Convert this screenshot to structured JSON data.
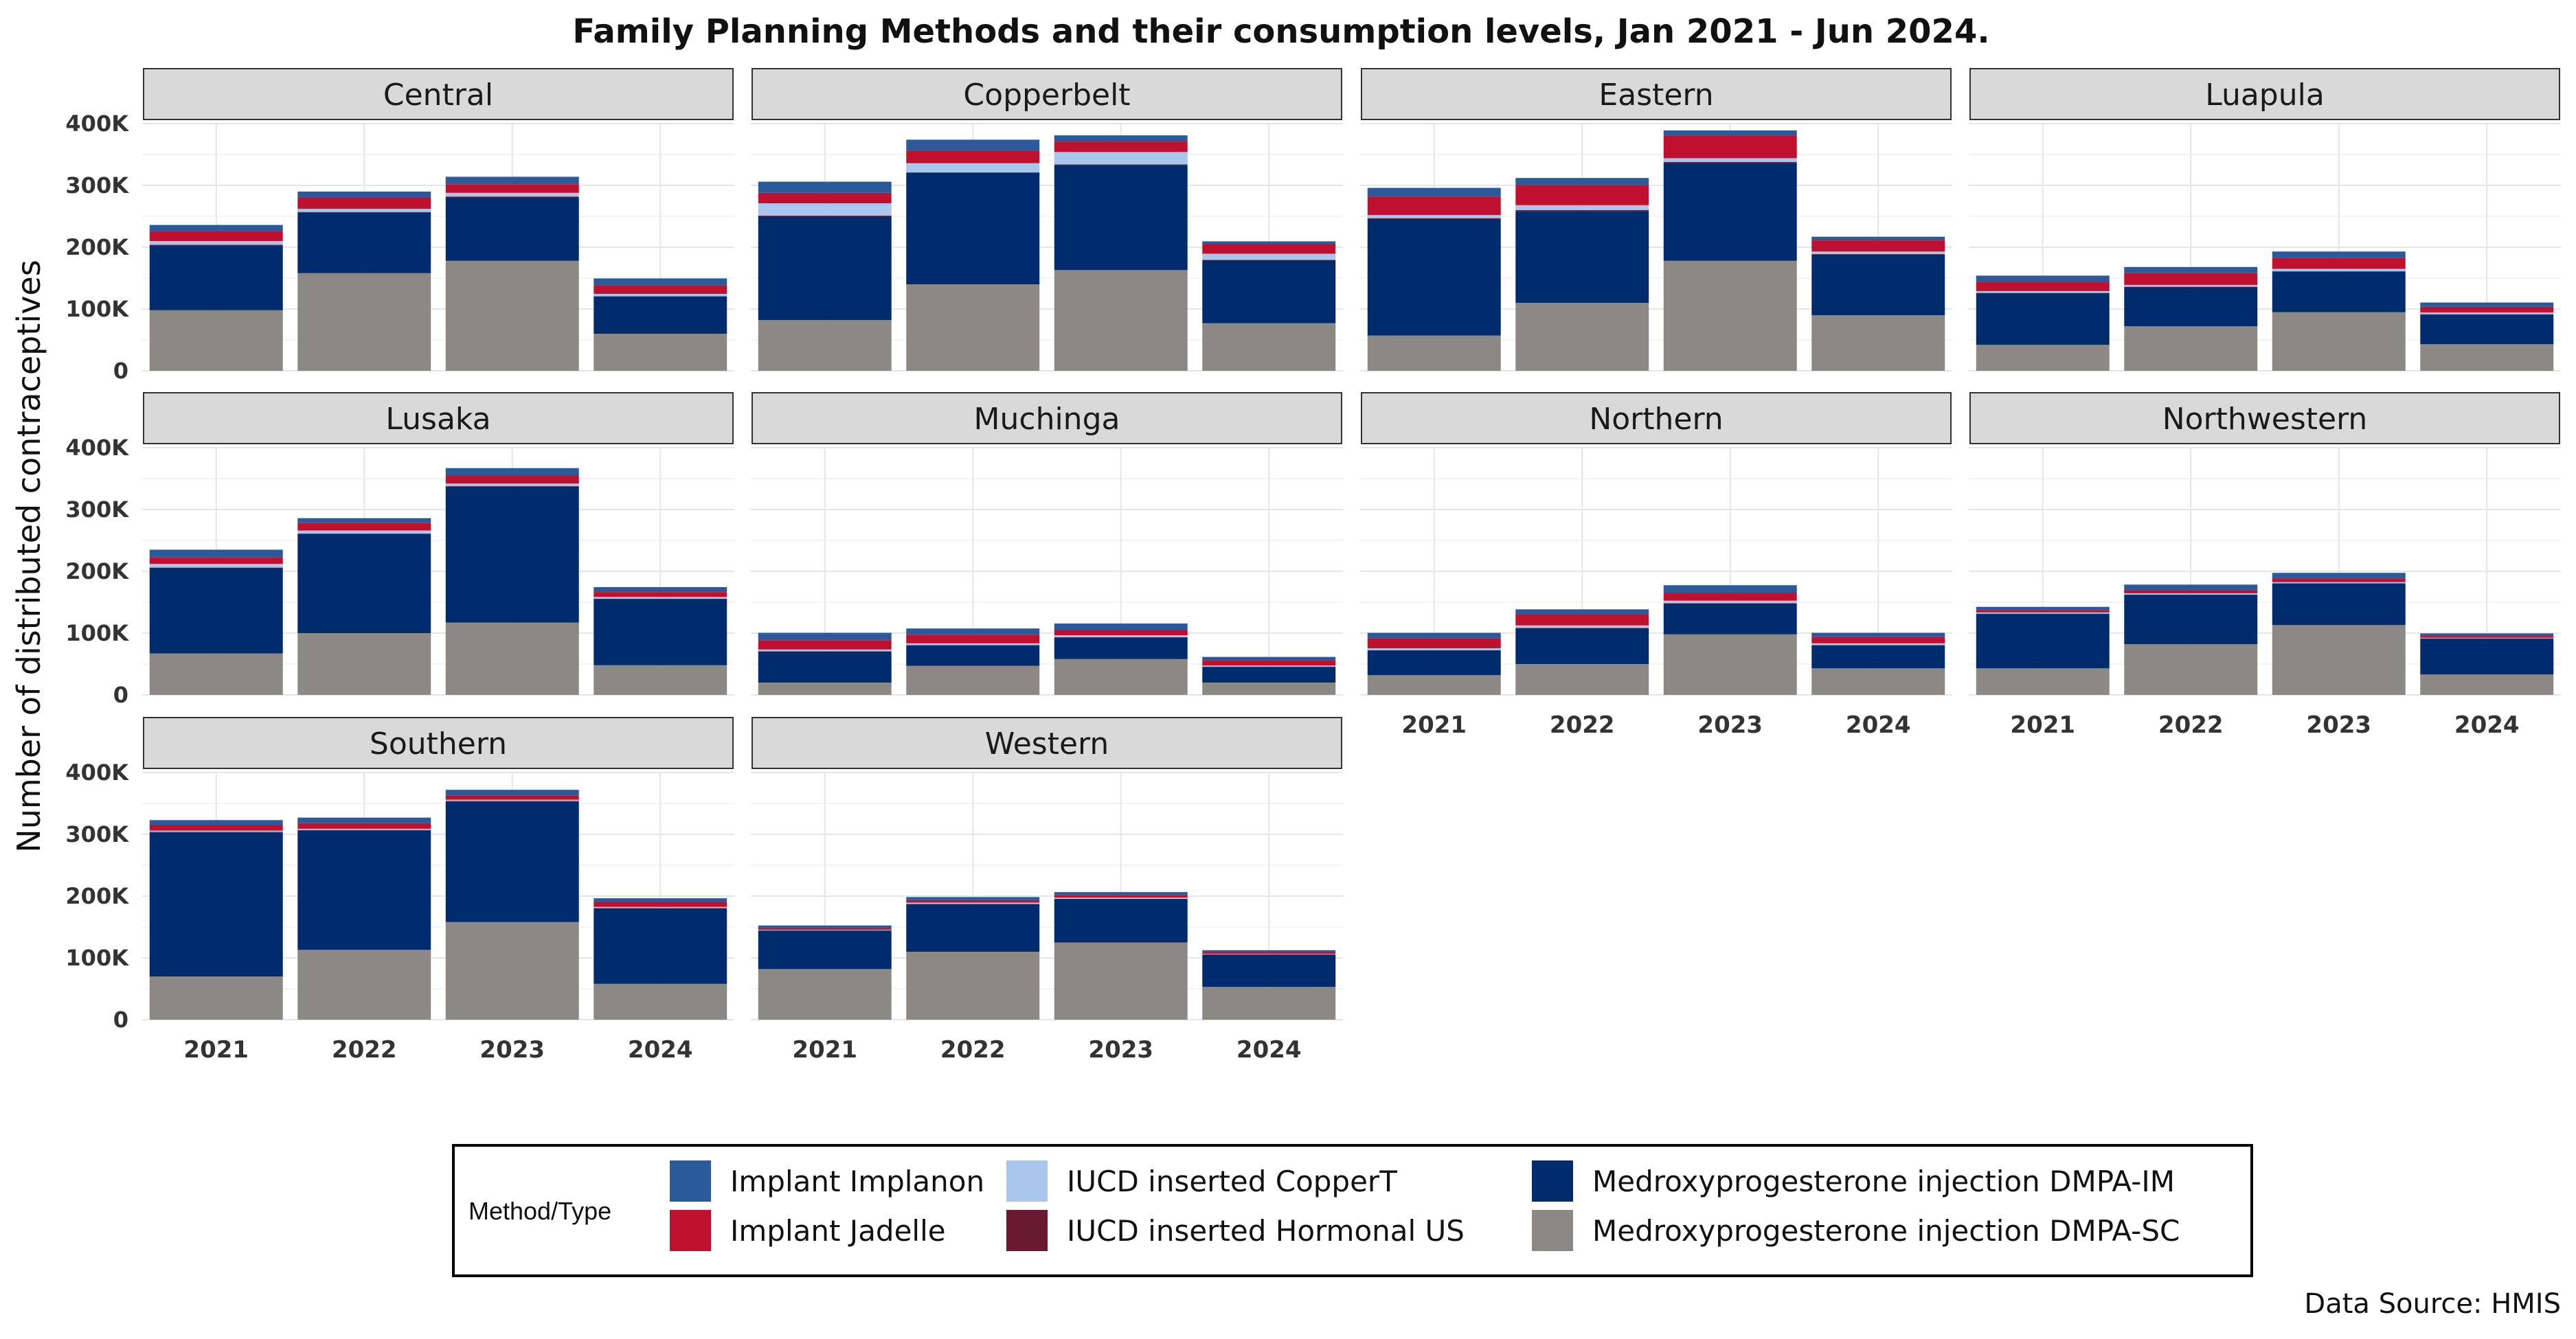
{
  "chart_data": {
    "type": "bar",
    "stacked": true,
    "title": "Family Planning Methods and their consumption levels, Jan 2021 - Jun 2024.",
    "ylabel": "Number of distributed contraceptives",
    "xlabel": "",
    "ylim": [
      0,
      400000
    ],
    "yticks": [
      0,
      100000,
      200000,
      300000,
      400000
    ],
    "ytick_labels": [
      "0",
      "100K",
      "200K",
      "300K",
      "400K"
    ],
    "categories": [
      "2021",
      "2022",
      "2023",
      "2024"
    ],
    "grid": true,
    "legend": {
      "title": "Method/Type",
      "placement": "bottom",
      "items": [
        {
          "name": "Implant Implanon",
          "color": "#2a5a9a"
        },
        {
          "name": "Implant Jadelle",
          "color": "#c0102f"
        },
        {
          "name": "IUCD inserted CopperT",
          "color": "#a9c6ec"
        },
        {
          "name": "IUCD inserted Hormonal US",
          "color": "#6a1a30"
        },
        {
          "name": "Medroxyprogesterone injection DMPA-IM",
          "color": "#002c6e"
        },
        {
          "name": "Medroxyprogesterone injection DMPA-SC",
          "color": "#8c8883"
        }
      ]
    },
    "stack_order": [
      "Medroxyprogesterone injection DMPA-SC",
      "Medroxyprogesterone injection DMPA-IM",
      "IUCD inserted Hormonal US",
      "IUCD inserted CopperT",
      "Implant Jadelle",
      "Implant Implanon"
    ],
    "panels": [
      {
        "name": "Central",
        "series": [
          {
            "name": "Medroxyprogesterone injection DMPA-SC",
            "values": [
              98000,
              158000,
              178000,
              60000
            ]
          },
          {
            "name": "Medroxyprogesterone injection DMPA-IM",
            "values": [
              105000,
              98000,
              103000,
              60000
            ]
          },
          {
            "name": "IUCD inserted Hormonal US",
            "values": [
              1000,
              1000,
              1000,
              500
            ]
          },
          {
            "name": "IUCD inserted CopperT",
            "values": [
              6000,
              5000,
              6000,
              4000
            ]
          },
          {
            "name": "Implant Jadelle",
            "values": [
              16000,
              18000,
              14000,
              14000
            ]
          },
          {
            "name": "Implant Implanon",
            "values": [
              10000,
              10000,
              12000,
              11000
            ]
          }
        ]
      },
      {
        "name": "Copperbelt",
        "series": [
          {
            "name": "Medroxyprogesterone injection DMPA-SC",
            "values": [
              82000,
              140000,
              163000,
              77000
            ]
          },
          {
            "name": "Medroxyprogesterone injection DMPA-IM",
            "values": [
              168000,
              180000,
              170000,
              102000
            ]
          },
          {
            "name": "IUCD inserted Hormonal US",
            "values": [
              1000,
              1000,
              1000,
              500
            ]
          },
          {
            "name": "IUCD inserted CopperT",
            "values": [
              20000,
              15000,
              20000,
              10000
            ]
          },
          {
            "name": "Implant Jadelle",
            "values": [
              17000,
              20000,
              17000,
              16000
            ]
          },
          {
            "name": "Implant Implanon",
            "values": [
              18000,
              18000,
              10000,
              4000
            ]
          }
        ]
      },
      {
        "name": "Eastern",
        "series": [
          {
            "name": "Medroxyprogesterone injection DMPA-SC",
            "values": [
              57000,
              110000,
              178000,
              90000
            ]
          },
          {
            "name": "Medroxyprogesterone injection DMPA-IM",
            "values": [
              188000,
              148000,
              158000,
              98000
            ]
          },
          {
            "name": "IUCD inserted Hormonal US",
            "values": [
              2000,
              2000,
              2000,
              1000
            ]
          },
          {
            "name": "IUCD inserted CopperT",
            "values": [
              5000,
              8000,
              6000,
              4000
            ]
          },
          {
            "name": "Implant Jadelle",
            "values": [
              30000,
              33000,
              36000,
              18000
            ]
          },
          {
            "name": "Implant Implanon",
            "values": [
              14000,
              11000,
              9000,
              6000
            ]
          }
        ]
      },
      {
        "name": "Luapula",
        "series": [
          {
            "name": "Medroxyprogesterone injection DMPA-SC",
            "values": [
              42000,
              72000,
              95000,
              43000
            ]
          },
          {
            "name": "Medroxyprogesterone injection DMPA-IM",
            "values": [
              83000,
              63000,
              65000,
              48000
            ]
          },
          {
            "name": "IUCD inserted Hormonal US",
            "values": [
              1000,
              1000,
              1000,
              500
            ]
          },
          {
            "name": "IUCD inserted CopperT",
            "values": [
              3000,
              3000,
              4000,
              3000
            ]
          },
          {
            "name": "Implant Jadelle",
            "values": [
              15000,
              19000,
              18000,
              9000
            ]
          },
          {
            "name": "Implant Implanon",
            "values": [
              10000,
              10000,
              10000,
              7000
            ]
          }
        ]
      },
      {
        "name": "Lusaka",
        "series": [
          {
            "name": "Medroxyprogesterone injection DMPA-SC",
            "values": [
              67000,
              100000,
              117000,
              48000
            ]
          },
          {
            "name": "Medroxyprogesterone injection DMPA-IM",
            "values": [
              138000,
              160000,
              220000,
              107000
            ]
          },
          {
            "name": "IUCD inserted Hormonal US",
            "values": [
              1000,
              1000,
              1000,
              500
            ]
          },
          {
            "name": "IUCD inserted CopperT",
            "values": [
              6000,
              5000,
              4000,
              3000
            ]
          },
          {
            "name": "Implant Jadelle",
            "values": [
              11000,
              12000,
              13000,
              8000
            ]
          },
          {
            "name": "Implant Implanon",
            "values": [
              12000,
              8000,
              12000,
              8000
            ]
          }
        ]
      },
      {
        "name": "Muchinga",
        "series": [
          {
            "name": "Medroxyprogesterone injection DMPA-SC",
            "values": [
              20000,
              47000,
              58000,
              20000
            ]
          },
          {
            "name": "Medroxyprogesterone injection DMPA-IM",
            "values": [
              50000,
              33000,
              35000,
              25000
            ]
          },
          {
            "name": "IUCD inserted Hormonal US",
            "values": [
              500,
              500,
              500,
              500
            ]
          },
          {
            "name": "IUCD inserted CopperT",
            "values": [
              3000,
              3000,
              3000,
              2000
            ]
          },
          {
            "name": "Implant Jadelle",
            "values": [
              15000,
              14000,
              9000,
              8000
            ]
          },
          {
            "name": "Implant Implanon",
            "values": [
              12000,
              10000,
              10000,
              6000
            ]
          }
        ]
      },
      {
        "name": "Northern",
        "series": [
          {
            "name": "Medroxyprogesterone injection DMPA-SC",
            "values": [
              32000,
              50000,
              98000,
              43000
            ]
          },
          {
            "name": "Medroxyprogesterone injection DMPA-IM",
            "values": [
              40000,
              58000,
              50000,
              37000
            ]
          },
          {
            "name": "IUCD inserted Hormonal US",
            "values": [
              500,
              500,
              500,
              500
            ]
          },
          {
            "name": "IUCD inserted CopperT",
            "values": [
              3000,
              4000,
              4000,
              3000
            ]
          },
          {
            "name": "Implant Jadelle",
            "values": [
              16000,
              18000,
              13000,
              10000
            ]
          },
          {
            "name": "Implant Implanon",
            "values": [
              9000,
              8000,
              12000,
              7000
            ]
          }
        ]
      },
      {
        "name": "Northwestern",
        "series": [
          {
            "name": "Medroxyprogesterone injection DMPA-SC",
            "values": [
              43000,
              82000,
              113000,
              33000
            ]
          },
          {
            "name": "Medroxyprogesterone injection DMPA-IM",
            "values": [
              88000,
              80000,
              67000,
              58000
            ]
          },
          {
            "name": "IUCD inserted Hormonal US",
            "values": [
              500,
              500,
              500,
              500
            ]
          },
          {
            "name": "IUCD inserted CopperT",
            "values": [
              2000,
              2000,
              2000,
              1000
            ]
          },
          {
            "name": "Implant Jadelle",
            "values": [
              4000,
              5000,
              6000,
              3000
            ]
          },
          {
            "name": "Implant Implanon",
            "values": [
              5000,
              9000,
              9000,
              4000
            ]
          }
        ]
      },
      {
        "name": "Southern",
        "series": [
          {
            "name": "Medroxyprogesterone injection DMPA-SC",
            "values": [
              70000,
              113000,
              158000,
              58000
            ]
          },
          {
            "name": "Medroxyprogesterone injection DMPA-IM",
            "values": [
              233000,
              193000,
              195000,
              122000
            ]
          },
          {
            "name": "IUCD inserted Hormonal US",
            "values": [
              1000,
              1000,
              1000,
              500
            ]
          },
          {
            "name": "IUCD inserted CopperT",
            "values": [
              2000,
              2000,
              2000,
              2000
            ]
          },
          {
            "name": "Implant Jadelle",
            "values": [
              9000,
              9000,
              7000,
              8000
            ]
          },
          {
            "name": "Implant Implanon",
            "values": [
              8000,
              9000,
              9000,
              6000
            ]
          }
        ]
      },
      {
        "name": "Western",
        "series": [
          {
            "name": "Medroxyprogesterone injection DMPA-SC",
            "values": [
              82000,
              110000,
              125000,
              53000
            ]
          },
          {
            "name": "Medroxyprogesterone injection DMPA-IM",
            "values": [
              62000,
              77000,
              70000,
              52000
            ]
          },
          {
            "name": "IUCD inserted Hormonal US",
            "values": [
              500,
              500,
              500,
              500
            ]
          },
          {
            "name": "IUCD inserted CopperT",
            "values": [
              1000,
              2000,
              2000,
              1000
            ]
          },
          {
            "name": "Implant Jadelle",
            "values": [
              3000,
              4000,
              4000,
              3000
            ]
          },
          {
            "name": "Implant Implanon",
            "values": [
              4000,
              5000,
              5000,
              3000
            ]
          }
        ]
      }
    ]
  },
  "source": "Data Source: HMIS"
}
